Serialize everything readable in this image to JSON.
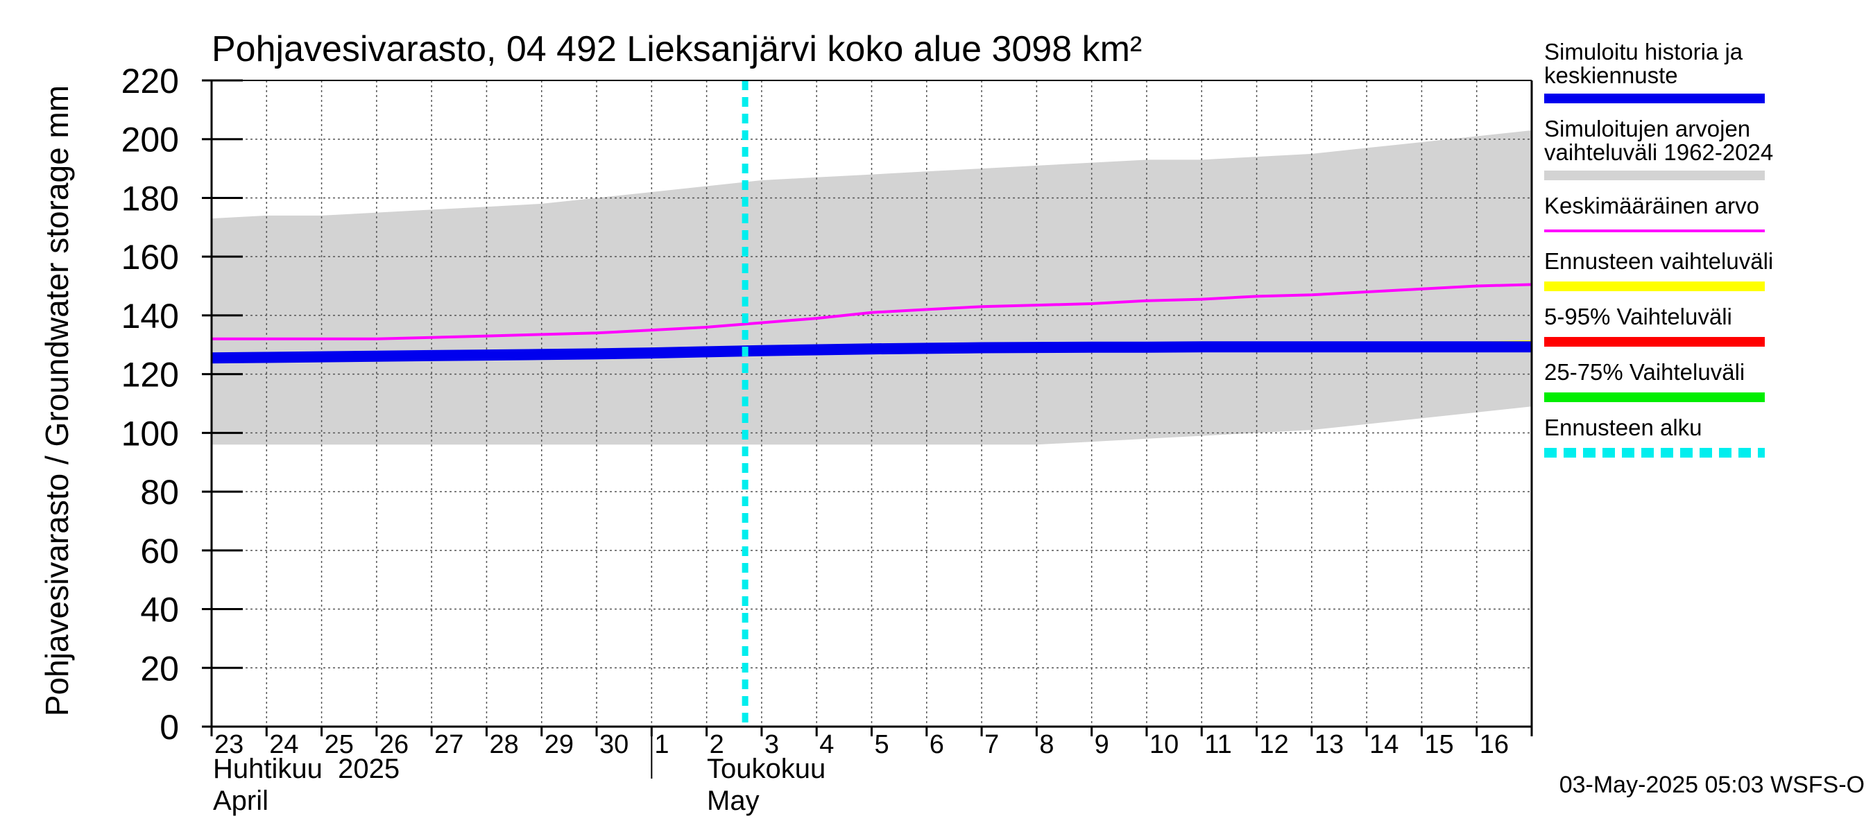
{
  "chart_data": {
    "type": "line",
    "title": "Pohjavesivarasto, 04 492 Lieksanjärvi koko alue 3098 km²",
    "ylabel": "Pohjavesivarasto / Groundwater storage   mm",
    "ylim": [
      0,
      220
    ],
    "yticks": [
      "0",
      "20",
      "40",
      "60",
      "80",
      "100",
      "120",
      "140",
      "160",
      "180",
      "200",
      "220"
    ],
    "grid": true,
    "legend_placement": "right",
    "x_tick_labels": [
      "23",
      "24",
      "25",
      "26",
      "27",
      "28",
      "29",
      "30",
      "1",
      "2",
      "3",
      "4",
      "5",
      "6",
      "7",
      "8",
      "9",
      "10",
      "11",
      "12",
      "13",
      "14",
      "15",
      "16"
    ],
    "x_dates": [
      "2025-04-23",
      "2025-04-24",
      "2025-04-25",
      "2025-04-26",
      "2025-04-27",
      "2025-04-28",
      "2025-04-29",
      "2025-04-30",
      "2025-05-01",
      "2025-05-02",
      "2025-05-03",
      "2025-05-04",
      "2025-05-05",
      "2025-05-06",
      "2025-05-07",
      "2025-05-08",
      "2025-05-09",
      "2025-05-10",
      "2025-05-11",
      "2025-05-12",
      "2025-05-13",
      "2025-05-14",
      "2025-05-15",
      "2025-05-16",
      "2025-05-17"
    ],
    "month_labels": [
      {
        "line1": "Huhtikuu  2025",
        "line2": "April"
      },
      {
        "line1": "Toukokuu",
        "line2": "May"
      }
    ],
    "forecast_start_date": "2025-05-03",
    "series": [
      {
        "name": "Simuloitujen arvojen vaihteluväli 1962-2024",
        "kind": "band",
        "color": "#d3d3d3",
        "upper": [
          173,
          174,
          174,
          175,
          176,
          177,
          178,
          180,
          182,
          184,
          186,
          187,
          188,
          189,
          190,
          191,
          192,
          193,
          193,
          194,
          195,
          197,
          199,
          201,
          203
        ],
        "lower": [
          96,
          96,
          96,
          96,
          96,
          96,
          96,
          96,
          96,
          96,
          96,
          96,
          96,
          96,
          96,
          96,
          97,
          98,
          99,
          100,
          101,
          103,
          105,
          107,
          109
        ]
      },
      {
        "name": "Keskimääräinen arvo",
        "kind": "line",
        "color": "#ff00ff",
        "values": [
          132,
          132,
          132,
          132,
          132.5,
          133,
          133.5,
          134,
          135,
          136,
          137.5,
          139,
          141,
          142,
          143,
          143.5,
          144,
          145,
          145.5,
          146.5,
          147,
          148,
          149,
          150,
          150.5
        ]
      },
      {
        "name": "Simuloitu historia ja keskiennuste",
        "kind": "line",
        "color": "#0000ee",
        "values": [
          125.5,
          125.7,
          125.9,
          126.1,
          126.3,
          126.5,
          126.7,
          126.9,
          127.2,
          127.6,
          128,
          128.3,
          128.6,
          128.8,
          129,
          129.1,
          129.2,
          129.2,
          129.3,
          129.3,
          129.3,
          129.3,
          129.3,
          129.3,
          129.3
        ]
      },
      {
        "name": "Ennusteen vaihteluväli",
        "kind": "band",
        "color": "#ffff00",
        "x_start": 21.5,
        "upper": [
          130.5,
          131,
          131.3,
          131.5
        ],
        "lower": [
          128.5,
          128.5,
          128.5,
          128.5
        ]
      }
    ],
    "legend": [
      {
        "line1": "Simuloitu historia ja",
        "line2": "keskiennuste",
        "color": "#0000ee",
        "style": "solid",
        "weight": "thick"
      },
      {
        "line1": "Simuloitujen arvojen",
        "line2": "vaihteluväli 1962-2024",
        "color": "#d3d3d3",
        "style": "solid",
        "weight": "thick"
      },
      {
        "line1": "Keskimääräinen arvo",
        "line2": "",
        "color": "#ff00ff",
        "style": "solid",
        "weight": "thin"
      },
      {
        "line1": "Ennusteen vaihteluväli",
        "line2": "",
        "color": "#ffff00",
        "style": "solid",
        "weight": "thick"
      },
      {
        "line1": "5-95% Vaihteluväli",
        "line2": "",
        "color": "#ff0000",
        "style": "solid",
        "weight": "thick"
      },
      {
        "line1": "25-75% Vaihteluväli",
        "line2": "",
        "color": "#00ee00",
        "style": "solid",
        "weight": "thick"
      },
      {
        "line1": "Ennusteen alku",
        "line2": "",
        "color": "#00eeee",
        "style": "dashed",
        "weight": "thick"
      }
    ],
    "timestamp": "03-May-2025 05:03 WSFS-O"
  }
}
